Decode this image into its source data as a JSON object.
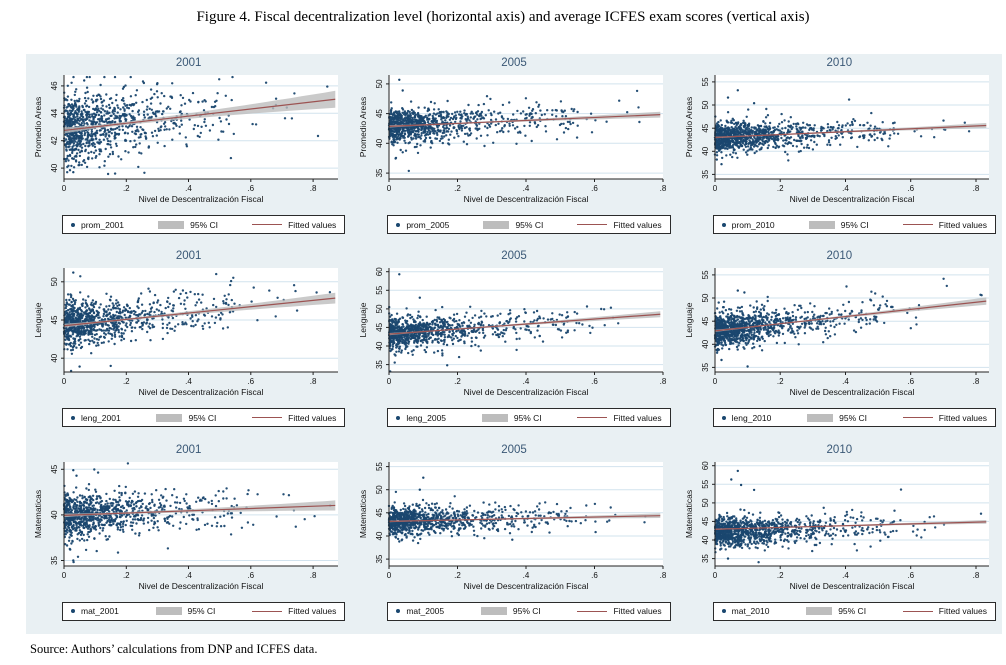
{
  "figure": {
    "title": "Figure 4. Fiscal decentralization level (horizontal axis) and average ICFES exam scores (vertical axis)",
    "source": "Source: Authors’ calculations from DNP and ICFES data."
  },
  "colors": {
    "page_bg": "#ffffff",
    "graph_bg": "#e9f0f3",
    "plot_bg": "#ffffff",
    "gridline": "#d2e3ee",
    "axis": "#222222",
    "scatter_point": "#1a476f",
    "fit_line": "#9c5352",
    "ci_band": "#bdbdbd",
    "panel_title": "#3a5876"
  },
  "chart_data": {
    "type": "scatter",
    "xlabel": "Nivel de Descentralización Fiscal",
    "xtick_labels": [
      "0",
      ".2",
      ".4",
      ".6",
      ".8"
    ],
    "xtick_values": [
      0,
      0.2,
      0.4,
      0.6,
      0.8
    ],
    "legend": {
      "ci_label": "95% CI",
      "fit_label": "Fitted values"
    },
    "grid": true,
    "panels": [
      {
        "title": "2001",
        "series": "prom_2001",
        "ylabel": "Promedio Areas",
        "yticks": [
          40,
          42,
          44,
          46
        ],
        "ylim": [
          39.2,
          46.8
        ],
        "xlim": [
          0,
          0.88
        ],
        "n_points": 950,
        "x_mean": 0.115,
        "y_sd": 1.15,
        "y_offset": 0,
        "fit": {
          "y_start": 42.75,
          "y_end": 45.05
        },
        "ci": {
          "w_start": 0.22,
          "w_end": 0.62
        },
        "seed": 11,
        "outliers": [
          [
            0.065,
            46.4
          ],
          [
            0.3,
            46.2
          ],
          [
            0.03,
            39.7
          ]
        ]
      },
      {
        "title": "2005",
        "series": "prom_2005",
        "ylabel": "Promedio Areas",
        "yticks": [
          35,
          40,
          45,
          50
        ],
        "ylim": [
          34,
          51.5
        ],
        "xlim": [
          0,
          0.8
        ],
        "n_points": 950,
        "x_mean": 0.105,
        "y_sd": 1.35,
        "y_offset": 0,
        "fit": {
          "y_start": 42.85,
          "y_end": 44.85
        },
        "ci": {
          "w_start": 0.2,
          "w_end": 0.5
        },
        "seed": 22,
        "outliers": [
          [
            0.03,
            50.7
          ],
          [
            0.04,
            48.9
          ],
          [
            0.04,
            38.5
          ]
        ]
      },
      {
        "title": "2010",
        "series": "prom_2010",
        "ylabel": "Promedio Areas",
        "yticks": [
          35,
          40,
          45,
          50,
          55
        ],
        "ylim": [
          34,
          56.5
        ],
        "xlim": [
          0,
          0.84
        ],
        "n_points": 1050,
        "x_mean": 0.11,
        "y_sd": 1.5,
        "y_offset": 0,
        "fit": {
          "y_start": 43.0,
          "y_end": 45.6
        },
        "ci": {
          "w_start": 0.2,
          "w_end": 0.55
        },
        "seed": 33,
        "outliers": [
          [
            0.07,
            53.2
          ],
          [
            0.04,
            51.6
          ],
          [
            0.12,
            50.4
          ],
          [
            0.02,
            37.2
          ]
        ]
      },
      {
        "title": "2001",
        "series": "leng_2001",
        "ylabel": "Lenguaje",
        "yticks": [
          40,
          45,
          50
        ],
        "ylim": [
          38.2,
          51.8
        ],
        "xlim": [
          0,
          0.88
        ],
        "n_points": 950,
        "x_mean": 0.115,
        "y_sd": 1.4,
        "y_offset": 0,
        "fit": {
          "y_start": 44.25,
          "y_end": 47.9
        },
        "ci": {
          "w_start": 0.25,
          "w_end": 0.7
        },
        "seed": 44,
        "outliers": [
          [
            0.03,
            51.2
          ],
          [
            0.05,
            38.9
          ],
          [
            0.15,
            39.0
          ]
        ]
      },
      {
        "title": "2005",
        "series": "leng_2005",
        "ylabel": "Lenguaje",
        "yticks": [
          35,
          40,
          45,
          50,
          55,
          60
        ],
        "ylim": [
          33,
          61
        ],
        "xlim": [
          0,
          0.8
        ],
        "n_points": 950,
        "x_mean": 0.105,
        "y_sd": 2.1,
        "y_offset": 0,
        "fit": {
          "y_start": 43.2,
          "y_end": 48.6
        },
        "ci": {
          "w_start": 0.3,
          "w_end": 0.8
        },
        "seed": 55,
        "outliers": [
          [
            0.03,
            59.3
          ],
          [
            0.09,
            53.0
          ],
          [
            0.17,
            34.8
          ]
        ]
      },
      {
        "title": "2010",
        "series": "leng_2010",
        "ylabel": "Lenguaje",
        "yticks": [
          35,
          40,
          45,
          50,
          55
        ],
        "ylim": [
          34,
          56.5
        ],
        "xlim": [
          0,
          0.84
        ],
        "n_points": 1050,
        "x_mean": 0.11,
        "y_sd": 1.7,
        "y_offset": 0,
        "fit": {
          "y_start": 42.9,
          "y_end": 49.4
        },
        "ci": {
          "w_start": 0.25,
          "w_end": 0.8
        },
        "seed": 66,
        "outliers": [
          [
            0.07,
            51.6
          ],
          [
            0.09,
            51.2
          ],
          [
            0.02,
            36.6
          ],
          [
            0.1,
            35.2
          ]
        ]
      },
      {
        "title": "2001",
        "series": "mat_2001",
        "ylabel": "Matematicas",
        "yticks": [
          35,
          40,
          45
        ],
        "ylim": [
          34.4,
          45.8
        ],
        "xlim": [
          0,
          0.88
        ],
        "n_points": 950,
        "x_mean": 0.115,
        "y_sd": 1.15,
        "y_offset": 0,
        "fit": {
          "y_start": 39.95,
          "y_end": 41.05
        },
        "ci": {
          "w_start": 0.2,
          "w_end": 0.55
        },
        "seed": 77,
        "outliers": [
          [
            0.03,
            35.0
          ],
          [
            0.03,
            44.9
          ],
          [
            0.04,
            44.3
          ],
          [
            0.02,
            36.2
          ]
        ]
      },
      {
        "title": "2005",
        "series": "mat_2005",
        "ylabel": "Matematicas",
        "yticks": [
          35,
          40,
          45,
          50,
          55
        ],
        "ylim": [
          33.5,
          56
        ],
        "xlim": [
          0,
          0.8
        ],
        "n_points": 950,
        "x_mean": 0.105,
        "y_sd": 1.45,
        "y_offset": 0,
        "fit": {
          "y_start": 43.15,
          "y_end": 44.4
        },
        "ci": {
          "w_start": 0.2,
          "w_end": 0.5
        },
        "seed": 88,
        "outliers": [
          [
            0.1,
            52.6
          ],
          [
            0.09,
            50.0
          ],
          [
            0.36,
            39.2
          ],
          [
            0.03,
            38.8
          ]
        ]
      },
      {
        "title": "2010",
        "series": "mat_2010",
        "ylabel": "Matematicas",
        "yticks": [
          35,
          40,
          45,
          50,
          55,
          60
        ],
        "ylim": [
          33,
          61
        ],
        "xlim": [
          0,
          0.84
        ],
        "n_points": 1050,
        "x_mean": 0.11,
        "y_sd": 1.9,
        "y_offset": -0.8,
        "fit": {
          "y_start": 42.9,
          "y_end": 44.9
        },
        "ci": {
          "w_start": 0.2,
          "w_end": 0.5
        },
        "seed": 99,
        "outliers": [
          [
            0.07,
            58.6
          ],
          [
            0.05,
            56.3
          ],
          [
            0.08,
            54.8
          ],
          [
            0.12,
            53.5
          ],
          [
            0.04,
            35.0
          ]
        ]
      }
    ]
  }
}
